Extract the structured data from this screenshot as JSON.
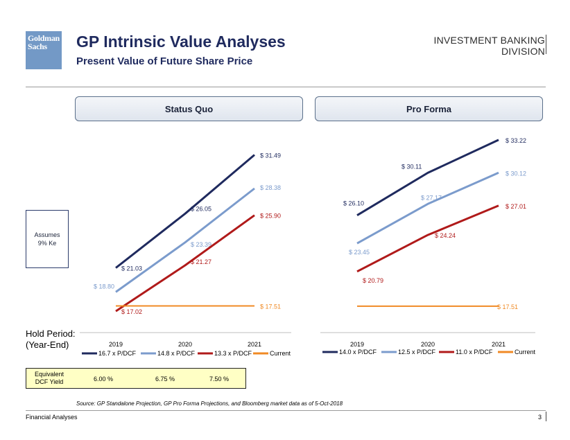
{
  "header": {
    "logo_line1": "Goldman",
    "logo_line2": "Sachs",
    "title": "GP Intrinsic Value Analyses",
    "subtitle": "Present Value of Future Share Price",
    "division_line1": "INVESTMENT BANKING",
    "division_line2": "DIVISION"
  },
  "assumption": {
    "line1": "Assumes",
    "line2": "9% Ke"
  },
  "hold_period": {
    "line1": "Hold Period:",
    "line2": "(Year-End)"
  },
  "dcf_yield": {
    "label_line1": "Equivalent",
    "label_line2": "DCF Yield",
    "values": [
      "6.00 %",
      "6.75 %",
      "7.50 %"
    ]
  },
  "footnote": "Source: GP Standalone Projection, GP Pro Forma Projections, and Bloomberg market data as of 5-Oct-2018",
  "footer": {
    "left": "Financial Analyses",
    "page": "3"
  },
  "colors": {
    "navy": "#1f2a5e",
    "lightblue": "#7b9bcc",
    "red": "#b01a1a",
    "orange": "#f08a24"
  },
  "chart_data": [
    {
      "type": "line",
      "title": "Status Quo",
      "categories": [
        "2019",
        "2020",
        "2021"
      ],
      "ylim": [
        16,
        33
      ],
      "series": [
        {
          "name": "16.7 x P/DCF",
          "color": "#1f2a5e",
          "values": [
            21.03,
            26.05,
            31.49
          ],
          "labels": [
            "$ 21.03",
            "$ 26.05",
            "$ 31.49"
          ]
        },
        {
          "name": "14.8 x P/DCF",
          "color": "#7b9bcc",
          "values": [
            18.8,
            23.39,
            28.38
          ],
          "labels": [
            "$ 18.80",
            "$ 23.39",
            "$ 28.38"
          ]
        },
        {
          "name": "13.3 x P/DCF",
          "color": "#b01a1a",
          "values": [
            17.02,
            21.27,
            25.9
          ],
          "labels": [
            "$ 17.02",
            "$ 21.27",
            "$ 25.90"
          ]
        },
        {
          "name": "Current",
          "color": "#f08a24",
          "values": [
            17.51,
            17.51,
            17.51
          ],
          "labels": [
            "",
            "",
            "$ 17.51"
          ]
        }
      ]
    },
    {
      "type": "line",
      "title": "Pro Forma",
      "categories": [
        "2019",
        "2020",
        "2021"
      ],
      "ylim": [
        16,
        34
      ],
      "series": [
        {
          "name": "14.0 x P/DCF",
          "color": "#1f2a5e",
          "values": [
            26.1,
            30.11,
            33.22
          ],
          "labels": [
            "$ 26.10",
            "$ 30.11",
            "$ 33.22"
          ]
        },
        {
          "name": "12.5 x P/DCF",
          "color": "#7b9bcc",
          "values": [
            23.45,
            27.17,
            30.12
          ],
          "labels": [
            "$ 23.45",
            "$ 27.17",
            "$ 30.12"
          ]
        },
        {
          "name": "11.0 x P/DCF",
          "color": "#b01a1a",
          "values": [
            20.79,
            24.24,
            27.01
          ],
          "labels": [
            "$ 20.79",
            "$ 24.24",
            "$ 27.01"
          ]
        },
        {
          "name": "Current",
          "color": "#f08a24",
          "values": [
            17.51,
            17.51,
            17.51
          ],
          "labels": [
            "",
            "",
            "$ 17.51"
          ]
        }
      ]
    }
  ]
}
